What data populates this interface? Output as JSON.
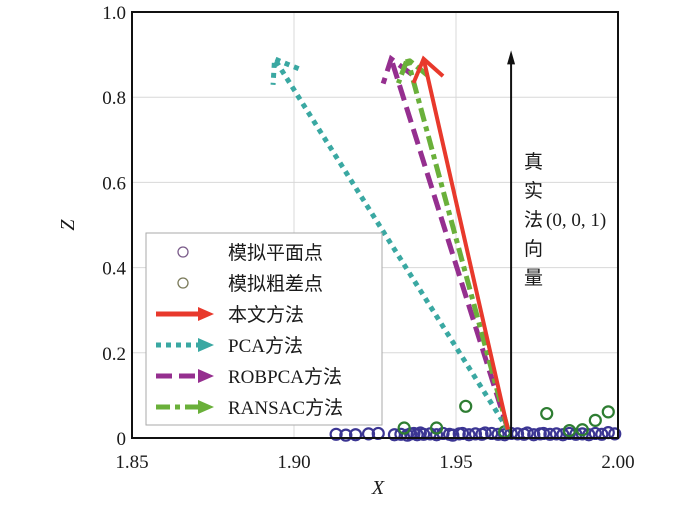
{
  "chart_data": {
    "type": "line",
    "title": "",
    "xlabel": "X",
    "ylabel": "Z",
    "xlim": [
      1.85,
      2.0
    ],
    "ylim": [
      0,
      1.0
    ],
    "xticks": [
      "1.85",
      "1.90",
      "1.95",
      "2.00"
    ],
    "yticks": [
      "0",
      "0.2",
      "0.4",
      "0.6",
      "0.8",
      "1.0"
    ],
    "grid": true,
    "legend_position": "center-left",
    "legend": [
      {
        "label": "模拟平面点",
        "marker": "circle",
        "color": "#3b3593"
      },
      {
        "label": "模拟粗差点",
        "marker": "circle",
        "color": "#2e7d32"
      },
      {
        "label": "本文方法",
        "style": "solid",
        "color": "#e8392c"
      },
      {
        "label": "PCA方法",
        "style": "dotted",
        "color": "#3aa8a2"
      },
      {
        "label": "ROBPCA方法",
        "style": "dashed",
        "color": "#952f8f"
      },
      {
        "label": "RANSAC方法",
        "style": "dashdot",
        "color": "#6ab03a"
      }
    ],
    "series": [
      {
        "name": "本文方法",
        "type": "arrow",
        "color": "#e8392c",
        "x": [
          1.966,
          1.94
        ],
        "z": [
          0.02,
          0.89
        ]
      },
      {
        "name": "PCA方法",
        "type": "arrow",
        "color": "#3aa8a2",
        "x": [
          1.966,
          1.894
        ],
        "z": [
          0.02,
          0.89
        ]
      },
      {
        "name": "ROBPCA方法",
        "type": "arrow",
        "color": "#952f8f",
        "x": [
          1.966,
          1.93
        ],
        "z": [
          0.02,
          0.89
        ]
      },
      {
        "name": "RANSAC方法",
        "type": "arrow",
        "color": "#6ab03a",
        "x": [
          1.966,
          1.935
        ],
        "z": [
          0.02,
          0.89
        ]
      }
    ],
    "true_normal": {
      "label_chars": [
        "真",
        "实",
        "法",
        "向",
        "量"
      ],
      "vector_text": "(0, 0, 1)",
      "x": 1.967,
      "z": [
        0.0,
        0.89
      ]
    },
    "plane_points": {
      "name": "模拟平面点",
      "color": "#3b3593",
      "x": [
        1.913,
        1.916,
        1.919,
        1.923,
        1.926,
        1.931,
        1.933,
        1.935,
        1.936,
        1.937,
        1.938,
        1.939,
        1.94,
        1.942,
        1.944,
        1.946,
        1.948,
        1.949,
        1.951,
        1.952,
        1.954,
        1.956,
        1.958,
        1.959,
        1.961,
        1.963,
        1.965,
        1.967,
        1.969,
        1.971,
        1.972,
        1.974,
        1.976,
        1.977,
        1.979,
        1.981,
        1.983,
        1.985,
        1.987,
        1.989,
        1.991,
        1.993,
        1.995,
        1.997,
        1.999
      ],
      "z": [
        0.004,
        0.002,
        0.003,
        0.005,
        0.006,
        0.003,
        0.004,
        0.002,
        0.005,
        0.006,
        0.003,
        0.007,
        0.004,
        0.005,
        0.003,
        0.006,
        0.004,
        0.002,
        0.005,
        0.006,
        0.003,
        0.005,
        0.004,
        0.007,
        0.006,
        0.004,
        0.003,
        0.006,
        0.005,
        0.004,
        0.007,
        0.003,
        0.005,
        0.006,
        0.004,
        0.005,
        0.003,
        0.006,
        0.004,
        0.005,
        0.003,
        0.006,
        0.004,
        0.008,
        0.005
      ]
    },
    "outlier_points": {
      "name": "模拟粗差点",
      "color": "#2e7d32",
      "x": [
        1.934,
        1.944,
        1.953,
        1.965,
        1.978,
        1.985,
        1.989,
        1.993,
        1.997
      ],
      "z": [
        0.014,
        0.014,
        0.065,
        0.005,
        0.048,
        0.008,
        0.01,
        0.032,
        0.052
      ]
    }
  }
}
